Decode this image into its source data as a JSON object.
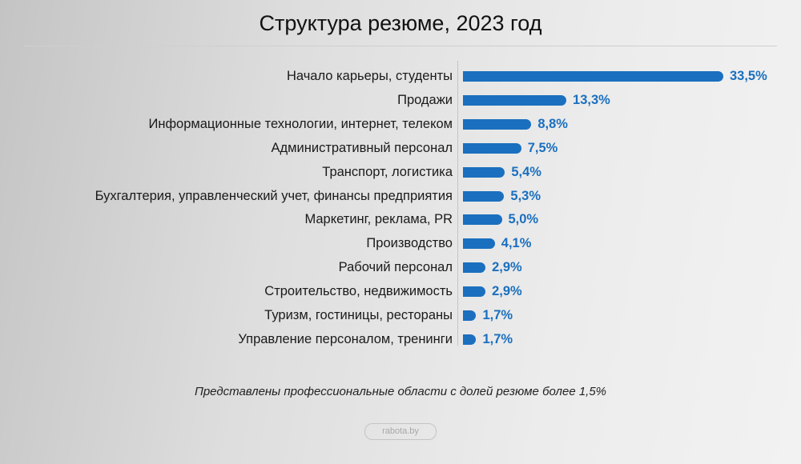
{
  "chart_data": {
    "type": "bar",
    "orientation": "horizontal",
    "title": "Структура резюме, 2023 год",
    "categories": [
      "Начало карьеры, студенты",
      "Продажи",
      "Информационные технологии, интернет, телеком",
      "Административный персонал",
      "Транспорт, логистика",
      "Бухгалтерия, управленческий учет, финансы предприятия",
      "Маркетинг, реклама, PR",
      "Производство",
      "Рабочий персонал",
      "Строительство, недвижимость",
      "Туризм, гостиницы, рестораны",
      "Управление персоналом, тренинги"
    ],
    "values": [
      33.5,
      13.3,
      8.8,
      7.5,
      5.4,
      5.3,
      5.0,
      4.1,
      2.9,
      2.9,
      1.7,
      1.7
    ],
    "value_labels": [
      "33,5%",
      "13,3%",
      "8,8%",
      "7,5%",
      "5,4%",
      "5,3%",
      "5,0%",
      "4,1%",
      "2,9%",
      "2,9%",
      "1,7%",
      "1,7%"
    ],
    "unit": "%",
    "grid": false,
    "bar_color": "#1a6fbf",
    "label_color": "#1a6fbf"
  },
  "note": "Представлены профессиональные области с долей резюме более 1,5%",
  "source": "rabota.by"
}
